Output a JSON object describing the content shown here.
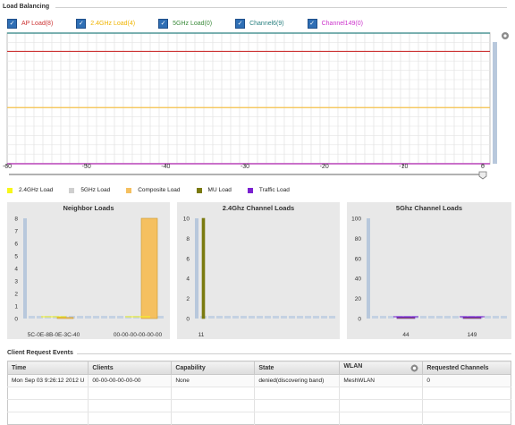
{
  "load_balancing": {
    "title": "Load Balancing",
    "legend": [
      {
        "label": "AP Load(8)",
        "color": "#cc3333"
      },
      {
        "label": "2.4GHz Load(4)",
        "color": "#f0b400"
      },
      {
        "label": "5GHz Load(0)",
        "color": "#3a8a3a"
      },
      {
        "label": "Channel6(9)",
        "color": "#2a8080"
      },
      {
        "label": "Channel149(0)",
        "color": "#cc33cc"
      }
    ],
    "chart_data": {
      "type": "line",
      "x_ticks": [
        "-60",
        "-50",
        "-40",
        "-30",
        "-20",
        "-10",
        "0"
      ],
      "xlim": [
        -60,
        0
      ],
      "grid": true,
      "series": [
        {
          "name": "AP Load(8)",
          "color": "#cc3333",
          "y_level": 0.86
        },
        {
          "name": "2.4GHz Load(4)",
          "color": "#f5c04a",
          "y_level": 0.43
        },
        {
          "name": "5GHz Load(0)",
          "color": "#3a8a3a",
          "y_level": 0.0
        },
        {
          "name": "Channel6(9)",
          "color": "#2a8080",
          "y_level": 1.0
        },
        {
          "name": "Channel149(0)",
          "color": "#cc33cc",
          "y_level": 0.0
        }
      ]
    },
    "slider_value": 0,
    "slider_max": 60
  },
  "legend2": [
    {
      "label": "2.4GHz Load",
      "color": "#f7f71a"
    },
    {
      "label": "5GHz Load",
      "color": "#cfcfcf"
    },
    {
      "label": "Composite Load",
      "color": "#f5c060"
    },
    {
      "label": "MU Load",
      "color": "#7a7a10"
    },
    {
      "label": "Traffic Load",
      "color": "#7a20d0"
    }
  ],
  "neighbor_loads": {
    "title": "Neighbor Loads",
    "chart_data": {
      "type": "bar",
      "categories": [
        "5C-0E-8B-0E-3C-40",
        "00-00-00-00-00-00"
      ],
      "y_ticks": [
        "0",
        "1",
        "2",
        "3",
        "4",
        "5",
        "6",
        "7",
        "8"
      ],
      "ylim": [
        0,
        8
      ],
      "series": [
        {
          "name": "Composite Load",
          "values": [
            0,
            8
          ]
        }
      ]
    }
  },
  "ch24_loads": {
    "title": "2.4Ghz Channel Loads",
    "chart_data": {
      "type": "bar",
      "categories": [
        "11"
      ],
      "y_ticks": [
        "0",
        "2",
        "4",
        "6",
        "8",
        "10"
      ],
      "ylim": [
        0,
        10
      ],
      "series": [
        {
          "name": "MU Load",
          "values": [
            10
          ]
        }
      ]
    }
  },
  "ch5_loads": {
    "title": "5Ghz Channel Loads",
    "chart_data": {
      "type": "bar",
      "categories": [
        "44",
        "149"
      ],
      "y_ticks": [
        "0",
        "20",
        "40",
        "60",
        "80",
        "100"
      ],
      "ylim": [
        0,
        100
      ],
      "series": [
        {
          "name": "Traffic Load",
          "values": [
            0,
            0
          ]
        }
      ]
    }
  },
  "client_events": {
    "title": "Client Request Events",
    "columns": [
      "Time",
      "Clients",
      "Capability",
      "State",
      "WLAN",
      "Requested Channels"
    ],
    "rows": [
      [
        "Mon Sep 03 9:26:12 2012 U",
        "00-00-00-00-00-00",
        "None",
        "denied(discovering band)",
        "MeshWLAN",
        "0"
      ]
    ]
  }
}
